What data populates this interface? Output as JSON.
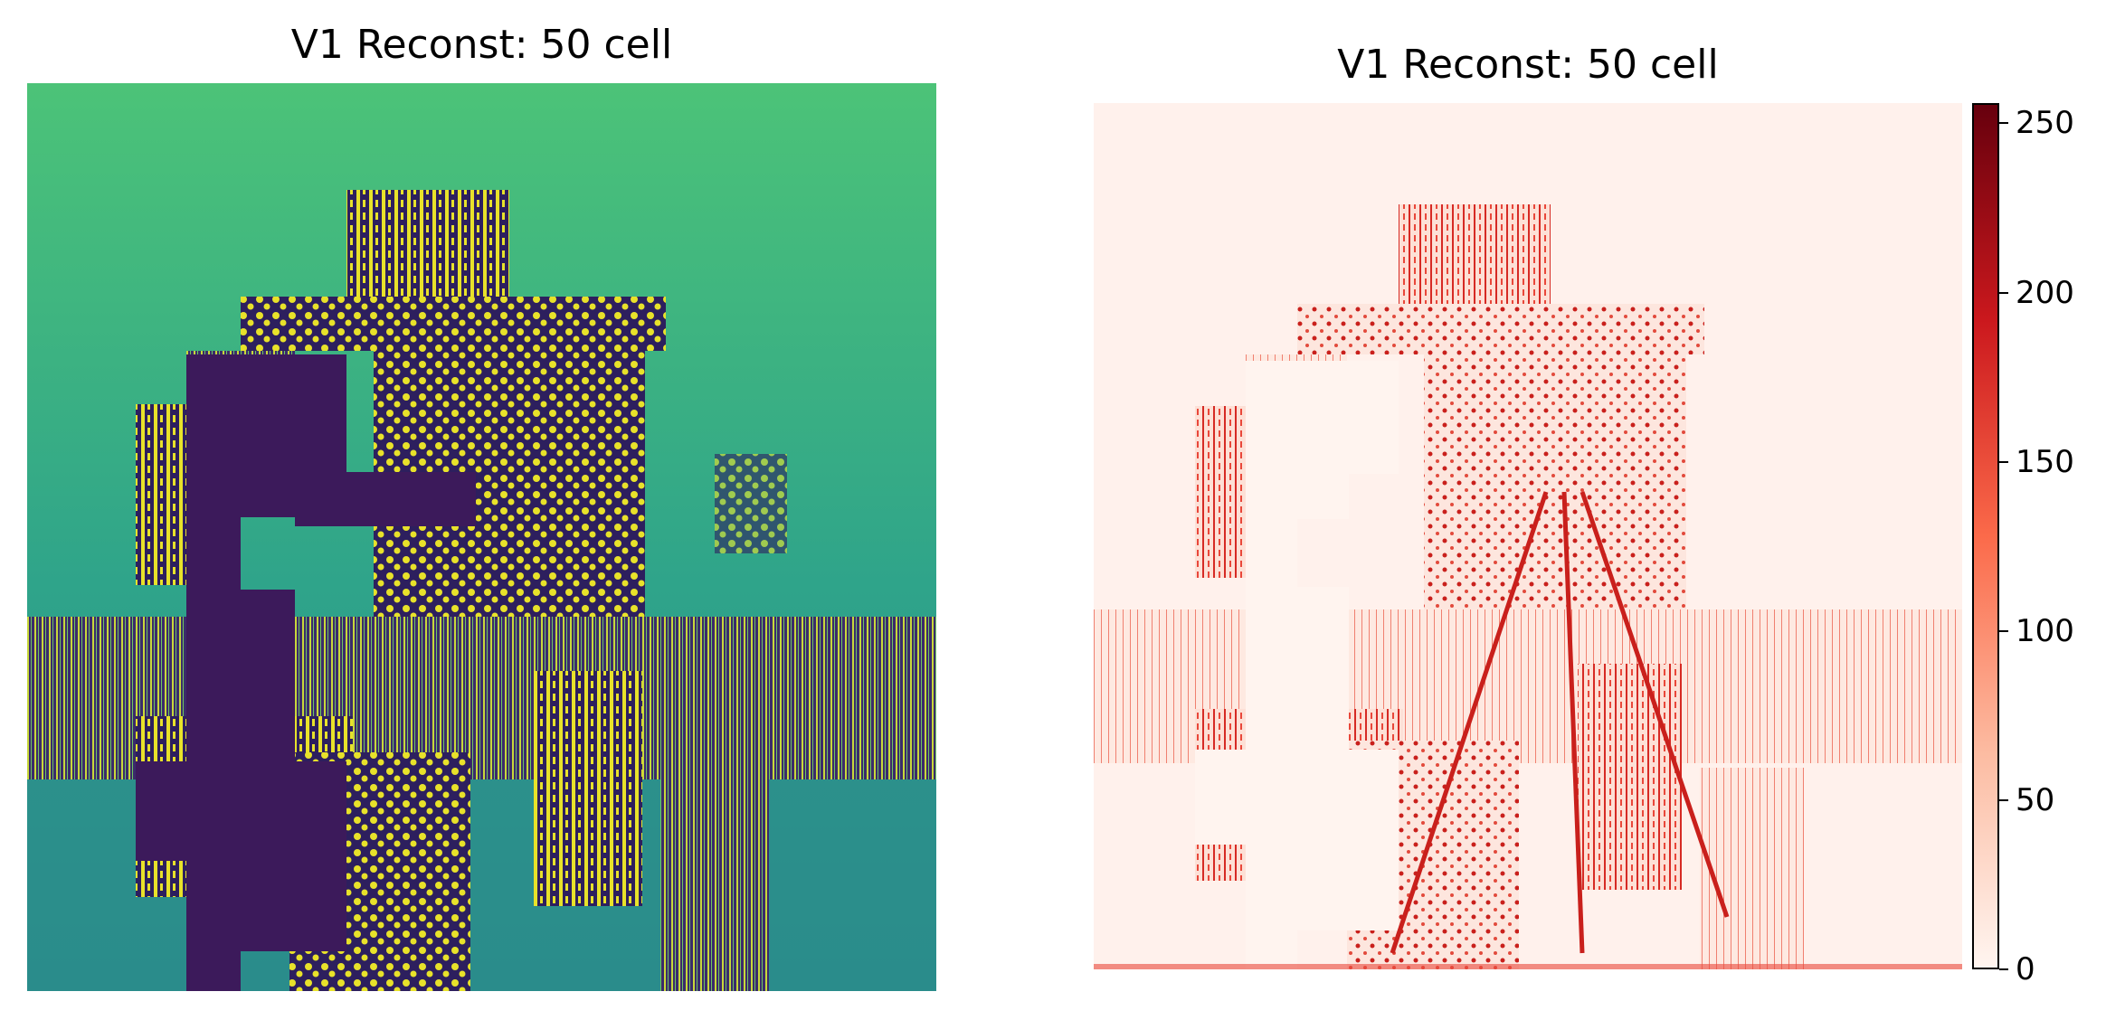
{
  "figure": {
    "left_panel": {
      "title": "V1 Reconst: 50 cell",
      "colormap": "viridis",
      "colors": {
        "background": "#2fa48a",
        "sky_top": "#4cc378",
        "subject": "#3c1a5b",
        "texture_light": "#e8e22a",
        "texture_dark": "#2d1f5e"
      }
    },
    "right_panel": {
      "title": "V1 Reconst: 50 cell",
      "colormap": "Reds",
      "colors": {
        "background": "#fff1ec",
        "texture": "#d62a24",
        "texture_dark": "#8e0a0d"
      }
    },
    "colorbar": {
      "min": 0,
      "max": 256,
      "ticks": [
        "0",
        "50",
        "100",
        "150",
        "200",
        "250"
      ],
      "tick_values": [
        0,
        50,
        100,
        150,
        200,
        250
      ],
      "colors": [
        "#fff5f0",
        "#fcbba1",
        "#fb6a4a",
        "#cb181d",
        "#67000d"
      ]
    }
  }
}
